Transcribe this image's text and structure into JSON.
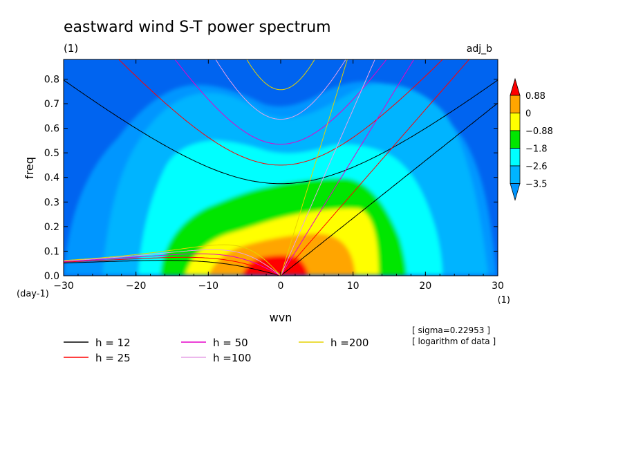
{
  "chart_data": {
    "type": "heatmap",
    "title": "eastward wind S-T power spectrum",
    "subtitle": "(1)",
    "top_right_label": "adj_b",
    "xlabel": "wvn",
    "xunit": "(1)",
    "ylabel": "freq",
    "yunit": "(day-1)",
    "xlim": [
      -30,
      30
    ],
    "ylim": [
      0,
      0.88
    ],
    "x_ticks": [
      -30,
      -20,
      -10,
      0,
      10,
      20,
      30
    ],
    "y_ticks": [
      0.0,
      0.1,
      0.2,
      0.3,
      0.4,
      0.5,
      0.6,
      0.7,
      0.8
    ],
    "colorbar": {
      "levels": [
        0.88,
        0,
        -0.88,
        -1.8,
        -2.6,
        -3.5
      ],
      "labels": [
        "0.88",
        "0",
        "−0.88",
        "−1.8",
        "−2.6",
        "−3.5"
      ],
      "colors": [
        "#ff0000",
        "#ffa500",
        "#ffff00",
        "#00e600",
        "#00ffff",
        "#00b4ff",
        "#0096ff",
        "#0064f0"
      ]
    },
    "legend": [
      {
        "label": "h = 12",
        "color": "#000000",
        "h": 12
      },
      {
        "label": "h = 25",
        "color": "#ff0000",
        "h": 25
      },
      {
        "label": "h = 50",
        "color": "#e600c8",
        "h": 50
      },
      {
        "label": "h =100",
        "color": "#e6a0e6",
        "h": 100
      },
      {
        "label": "h =200",
        "color": "#e6d200",
        "h": 200
      }
    ],
    "notes": [
      "[ sigma=0.22953 ]",
      "[ logarithm of data ]"
    ]
  }
}
